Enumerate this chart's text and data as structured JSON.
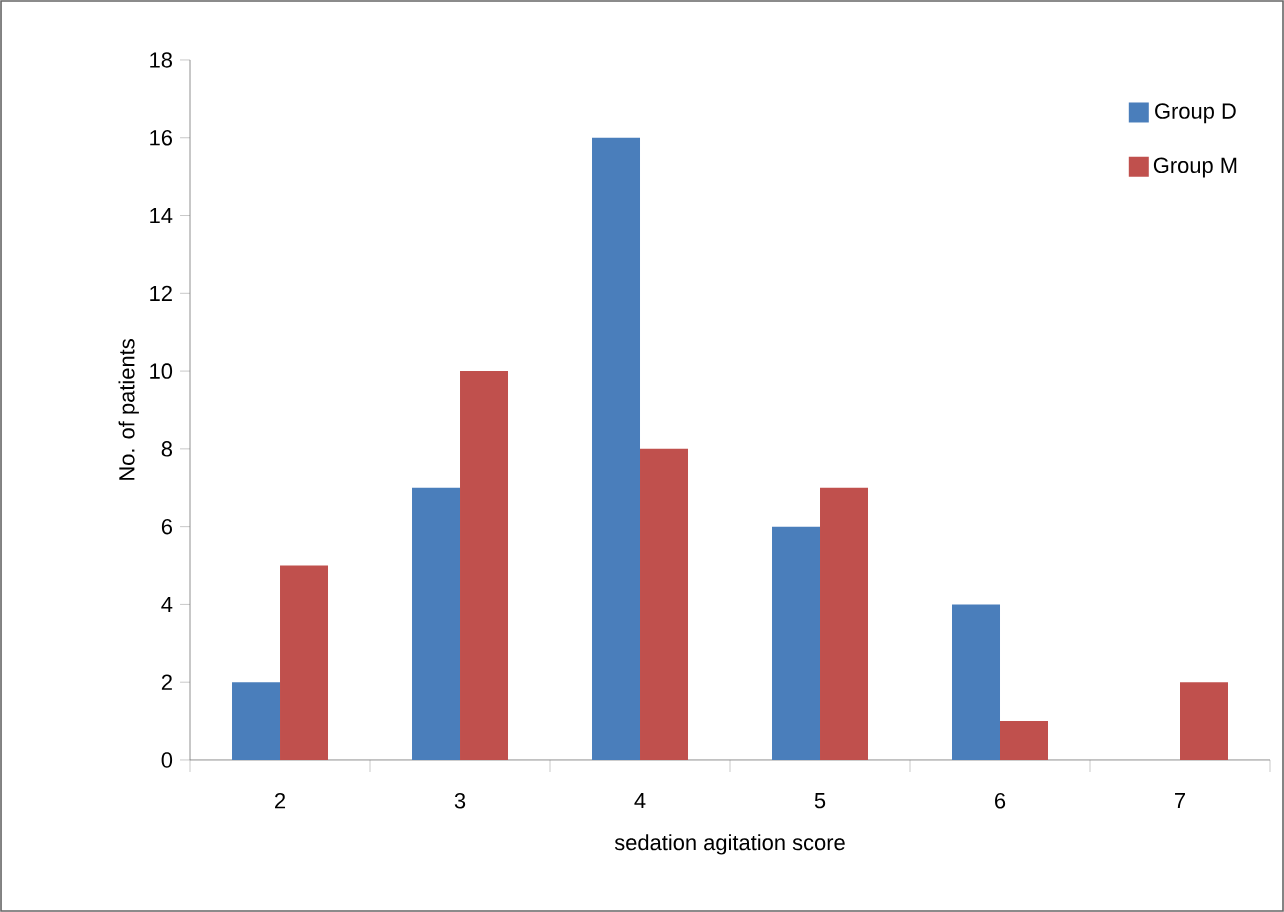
{
  "chart_data": {
    "type": "bar",
    "xlabel": "sedation agitation score",
    "ylabel": "No. of patients",
    "categories": [
      "2",
      "3",
      "4",
      "5",
      "6",
      "7"
    ],
    "series": [
      {
        "name": "Group D",
        "color": "#4a7ebb",
        "values": [
          2,
          7,
          16,
          6,
          4,
          0
        ]
      },
      {
        "name": "Group M",
        "color": "#c0504d",
        "values": [
          5,
          10,
          8,
          7,
          1,
          2
        ]
      }
    ],
    "ylim": [
      0,
      18
    ],
    "yticks": [
      0,
      2,
      4,
      6,
      8,
      10,
      12,
      14,
      16,
      18
    ],
    "grid": false,
    "legend": "top right"
  }
}
